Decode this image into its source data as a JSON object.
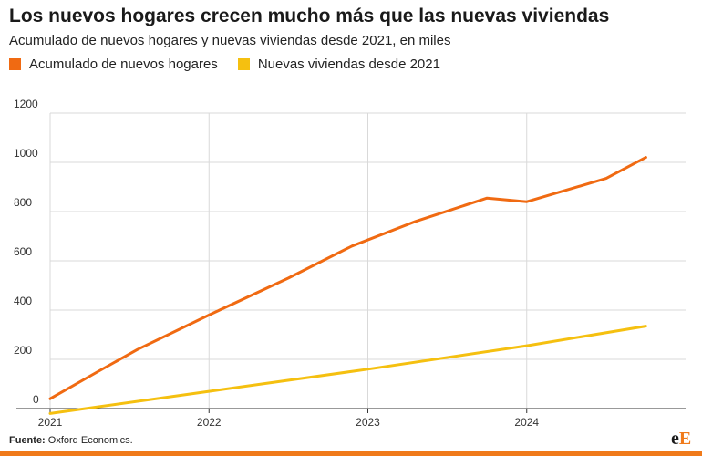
{
  "header": {
    "title": "Los nuevos hogares crecen mucho más que las nuevas viviendas",
    "subtitle": "Acumulado de nuevos hogares y nuevas viviendas desde 2021, en miles"
  },
  "legend": {
    "items": [
      {
        "label": "Acumulado de nuevos hogares",
        "color": "#f06a12"
      },
      {
        "label": "Nuevas viviendas desde 2021",
        "color": "#f5c010"
      }
    ]
  },
  "footer": {
    "source_label": "Fuente:",
    "source_text": " Oxford Economics.",
    "logo_e": "e",
    "logo_E": "E"
  },
  "chart_data": {
    "type": "line",
    "title": "Los nuevos hogares crecen mucho más que las nuevas viviendas",
    "subtitle": "Acumulado de nuevos hogares y nuevas viviendas desde 2021, en miles",
    "xlabel": "",
    "ylabel": "",
    "x_ticks": [
      "2021",
      "2022",
      "2023",
      "2024"
    ],
    "y_ticks": [
      0,
      200,
      400,
      600,
      800,
      1000,
      1200
    ],
    "xlim": [
      2021.0,
      2025.0
    ],
    "ylim": [
      0,
      1200
    ],
    "grid": true,
    "series": [
      {
        "name": "Acumulado de nuevos hogares",
        "color": "#f06a12",
        "x": [
          2021.0,
          2021.3,
          2021.55,
          2022.0,
          2022.5,
          2022.9,
          2023.3,
          2023.75,
          2024.0,
          2024.5,
          2024.75
        ],
        "y": [
          40,
          150,
          240,
          380,
          530,
          660,
          760,
          855,
          840,
          935,
          1020
        ]
      },
      {
        "name": "Nuevas viviendas desde 2021",
        "color": "#f5c010",
        "x": [
          2021.0,
          2022.0,
          2023.0,
          2024.0,
          2024.75
        ],
        "y": [
          -20,
          70,
          160,
          255,
          335
        ]
      }
    ]
  }
}
